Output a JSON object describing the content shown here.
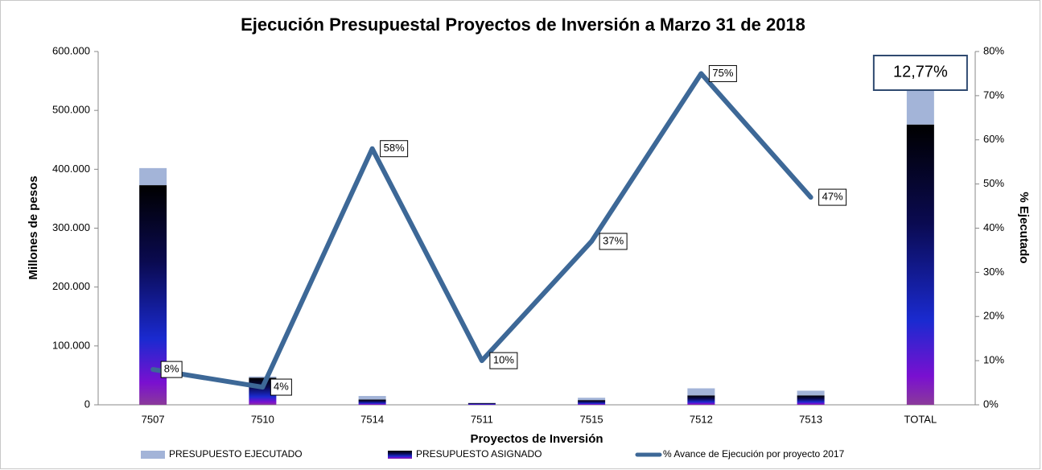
{
  "chart_data": {
    "type": "bar",
    "title": "Ejecución Presupuestal Proyectos de Inversión a Marzo 31 de 2018",
    "x_label": "Proyectos de Inversión",
    "y_label": "Millones de pesos",
    "y2_label": "% Ejecutado",
    "annotation": "12,77%",
    "categories": [
      "7507",
      "7510",
      "7514",
      "7511",
      "7515",
      "7512",
      "7513",
      "TOTAL"
    ],
    "series": [
      {
        "name": "PRESUPUESTO EJECUTADO",
        "color": "#a3b4d8",
        "values": [
          29000,
          2000,
          6000,
          300,
          4000,
          12000,
          8000,
          61000
        ]
      },
      {
        "name": "PRESUPUESTO ASIGNADO",
        "color": "#0a0a40",
        "values": [
          373000,
          46000,
          9000,
          3000,
          8000,
          16000,
          16000,
          476000
        ]
      },
      {
        "name": "% Avance de Ejecución por proyecto 2017",
        "color": "#3d6897",
        "type": "line",
        "axis": "y2",
        "values": [
          8,
          4,
          58,
          10,
          37,
          75,
          47,
          null
        ],
        "value_labels": [
          "8%",
          "4%",
          "58%",
          "10%",
          "37%",
          "75%",
          "47%",
          null
        ]
      }
    ],
    "ylim": [
      0,
      600000
    ],
    "yticks": [
      {
        "value": 0,
        "label": "0"
      },
      {
        "value": 100000,
        "label": "100.000"
      },
      {
        "value": 200000,
        "label": "200.000"
      },
      {
        "value": 300000,
        "label": "300.000"
      },
      {
        "value": 400000,
        "label": "400.000"
      },
      {
        "value": 500000,
        "label": "500.000"
      },
      {
        "value": 600000,
        "label": "600.000"
      }
    ],
    "y2lim": [
      0,
      80
    ],
    "y2ticks": [
      {
        "value": 0,
        "label": "0%"
      },
      {
        "value": 10,
        "label": "10%"
      },
      {
        "value": 20,
        "label": "20%"
      },
      {
        "value": 30,
        "label": "30%"
      },
      {
        "value": 40,
        "label": "40%"
      },
      {
        "value": 50,
        "label": "50%"
      },
      {
        "value": 60,
        "label": "60%"
      },
      {
        "value": 70,
        "label": "70%"
      },
      {
        "value": 80,
        "label": "80%"
      }
    ],
    "legend": "bottom"
  }
}
